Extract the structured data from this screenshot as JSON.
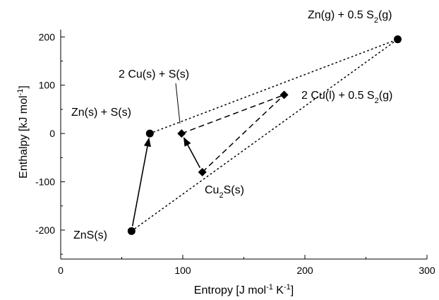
{
  "chart_data": {
    "type": "scatter",
    "xlabel": "Entropy [J mol-1 K-1]",
    "ylabel": "Enthalpy [kJ mol-1]",
    "xlim": [
      0,
      300
    ],
    "ylim": [
      -260,
      215
    ],
    "x_ticks": [
      0,
      100,
      200,
      300
    ],
    "y_ticks": [
      -200,
      -100,
      0,
      100,
      200
    ],
    "x_tick_labels": [
      "0",
      "100",
      "200",
      "300"
    ],
    "y_tick_labels": [
      "-200",
      "-100",
      "0",
      "100",
      "200"
    ],
    "grid": false,
    "points": [
      {
        "id": "ZnS(s)",
        "label": "ZnS(s)",
        "x": 58,
        "y": -202,
        "marker": "circle"
      },
      {
        "id": "Zn(s)+S(s)",
        "label": "Zn(s) + S(s)",
        "x": 73,
        "y": 0,
        "marker": "circle"
      },
      {
        "id": "Zn(g)+0.5S2(g)",
        "label": "Zn(g) + 0.5 S2(g)",
        "x": 276,
        "y": 195,
        "marker": "circle"
      },
      {
        "id": "Cu2S(s)",
        "label": "Cu2S(s)",
        "x": 116,
        "y": -80,
        "marker": "diamond"
      },
      {
        "id": "2Cu(s)+S(s)",
        "label": "2 Cu(s) + S(s)",
        "x": 99,
        "y": 0,
        "marker": "diamond"
      },
      {
        "id": "2Cu(l)+0.5S2(g)",
        "label": "2 Cu(l) + 0.5 S2(g)",
        "x": 183,
        "y": 80,
        "marker": "diamond"
      }
    ],
    "arrows": [
      {
        "from": "ZnS(s)",
        "to": "Zn(s)+S(s)"
      },
      {
        "from": "Cu2S(s)",
        "to": "2Cu(s)+S(s)"
      }
    ],
    "dotted_lines": [
      {
        "from": "Zn(s)+S(s)",
        "to": "Zn(g)+0.5S2(g)"
      },
      {
        "from": "ZnS(s)",
        "to": "Zn(g)+0.5S2(g)"
      }
    ],
    "dashed_lines": [
      {
        "from": "Cu2S(s)",
        "to": "2Cu(l)+0.5S2(g)"
      },
      {
        "from": "2Cu(s)+S(s)",
        "to": "2Cu(l)+0.5S2(g)"
      }
    ]
  }
}
